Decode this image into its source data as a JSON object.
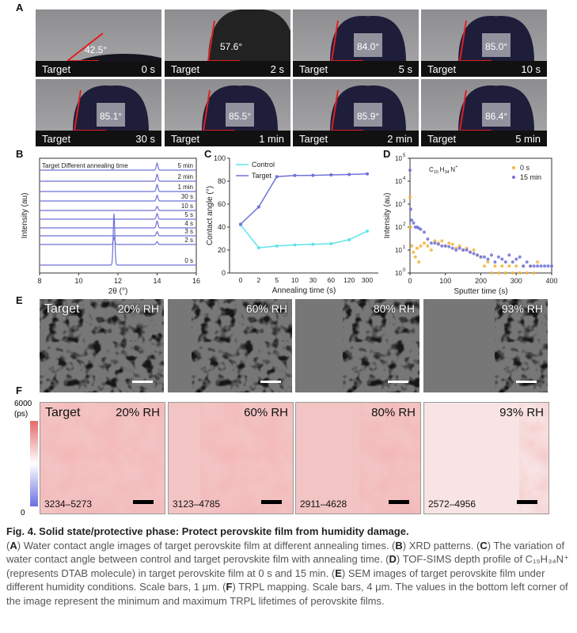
{
  "panel_labels": [
    "A",
    "B",
    "C",
    "D",
    "E",
    "F"
  ],
  "panel_a": {
    "sample": "Target",
    "images": [
      {
        "angle": "42.5°",
        "time": "0 s"
      },
      {
        "angle": "57.6°",
        "time": "2 s"
      },
      {
        "angle": "84.0°",
        "time": "5 s"
      },
      {
        "angle": "85.0°",
        "time": "10 s"
      },
      {
        "angle": "85.1°",
        "time": "30 s"
      },
      {
        "angle": "85.5°",
        "time": "1 min"
      },
      {
        "angle": "85.9°",
        "time": "2 min"
      },
      {
        "angle": "86.4°",
        "time": "5 min"
      }
    ]
  },
  "chart_data": [
    {
      "panel": "B",
      "type": "line",
      "title": "Target   Different annealing time",
      "xlabel": "2θ (°)",
      "ylabel": "Intensity (au)",
      "xlim": [
        8,
        16
      ],
      "xticks": [
        8,
        10,
        12,
        14,
        16
      ],
      "color": "#6f72d8",
      "series": [
        {
          "name": "0 s",
          "peaks": [
            {
              "x": 11.8,
              "h": 1.0
            }
          ]
        },
        {
          "name": "2 s",
          "peaks": [
            {
              "x": 11.8,
              "h": 0.25
            },
            {
              "x": 14.0,
              "h": 0.1
            }
          ]
        },
        {
          "name": "3 s",
          "peaks": [
            {
              "x": 14.0,
              "h": 0.15
            }
          ]
        },
        {
          "name": "4 s",
          "peaks": [
            {
              "x": 14.0,
              "h": 0.25
            }
          ]
        },
        {
          "name": "5 s",
          "peaks": [
            {
              "x": 14.0,
              "h": 0.2
            }
          ]
        },
        {
          "name": "10 s",
          "peaks": [
            {
              "x": 14.0,
              "h": 0.15
            }
          ]
        },
        {
          "name": "30 s",
          "peaks": [
            {
              "x": 14.0,
              "h": 0.2
            }
          ]
        },
        {
          "name": "1 min",
          "peaks": [
            {
              "x": 14.0,
              "h": 0.25
            }
          ]
        },
        {
          "name": "2 min",
          "peaks": [
            {
              "x": 14.0,
              "h": 0.25
            }
          ]
        },
        {
          "name": "5 min",
          "peaks": [
            {
              "x": 14.0,
              "h": 0.25
            }
          ]
        }
      ]
    },
    {
      "panel": "C",
      "type": "line",
      "xlabel": "Annealing time (s)",
      "ylabel": "Contact angle (°)",
      "ylim": [
        0,
        100
      ],
      "yticks": [
        0,
        20,
        40,
        60,
        80,
        100
      ],
      "categories": [
        "0",
        "2",
        "5",
        "10",
        "30",
        "60",
        "120",
        "300"
      ],
      "legend": "top-left",
      "series": [
        {
          "name": "Control",
          "color": "#5fe3ea",
          "values": [
            42,
            22,
            23.5,
            24.5,
            25,
            25.5,
            29,
            36.5
          ]
        },
        {
          "name": "Target",
          "color": "#6f72d8",
          "values": [
            42.5,
            57.6,
            84.0,
            85.0,
            85.1,
            85.5,
            85.9,
            86.4
          ]
        }
      ]
    },
    {
      "panel": "D",
      "type": "scatter",
      "annotation": "C15H34N+",
      "xlabel": "Sputter time (s)",
      "ylabel": "Intensity (au)",
      "xlim": [
        0,
        400
      ],
      "xticks": [
        0,
        100,
        200,
        300,
        400
      ],
      "yscale": "log",
      "ylim": [
        1,
        100000
      ],
      "yticks": [
        "10^0",
        "10^1",
        "10^2",
        "10^3",
        "10^4",
        "10^5"
      ],
      "legend": "top-right",
      "series": [
        {
          "name": "0 s",
          "color": "#f2b43c",
          "x": [
            0,
            2,
            5,
            10,
            15,
            20,
            25,
            30,
            40,
            50,
            60,
            70,
            80,
            90,
            100,
            110,
            120,
            130,
            140,
            150,
            160,
            170,
            180,
            190,
            200,
            210,
            220,
            230,
            240,
            250,
            260,
            270,
            280,
            290,
            300,
            310,
            320,
            330,
            340,
            350,
            360
          ],
          "y": [
            2000,
            100,
            15,
            8,
            5,
            12,
            3,
            15,
            20,
            15,
            10,
            25,
            20,
            25,
            15,
            20,
            18,
            12,
            15,
            10,
            12,
            8,
            10,
            6,
            5,
            2,
            3,
            1,
            2,
            1,
            2,
            1,
            2,
            1,
            2,
            1,
            2,
            1,
            2,
            1,
            3
          ]
        },
        {
          "name": "15 min",
          "color": "#6f72d8",
          "x": [
            0,
            2,
            5,
            10,
            15,
            20,
            25,
            30,
            40,
            50,
            60,
            70,
            80,
            90,
            100,
            110,
            120,
            130,
            140,
            150,
            160,
            170,
            180,
            190,
            200,
            210,
            220,
            230,
            240,
            250,
            260,
            270,
            280,
            290,
            300,
            310,
            320,
            330,
            340,
            350,
            360,
            370,
            380,
            390,
            400
          ],
          "y": [
            30000,
            600,
            200,
            150,
            100,
            100,
            90,
            80,
            60,
            30,
            20,
            20,
            18,
            15,
            15,
            14,
            12,
            10,
            12,
            10,
            10,
            8,
            7,
            6,
            5,
            5,
            4,
            6,
            3,
            5,
            4,
            3,
            6,
            3,
            4,
            5,
            2,
            3,
            2,
            2,
            2,
            2,
            2,
            2,
            2
          ]
        }
      ]
    }
  ],
  "panel_e": {
    "sample": "Target",
    "images": [
      {
        "rh": "20% RH"
      },
      {
        "rh": "60% RH"
      },
      {
        "rh": "80% RH"
      },
      {
        "rh": "93% RH"
      }
    ]
  },
  "panel_f": {
    "sample": "Target",
    "colorbar": {
      "max": "6000",
      "unit": "(ps)",
      "min": "0",
      "colors": [
        "#6b6fe0",
        "#ffffff",
        "#e46a6a"
      ]
    },
    "images": [
      {
        "rh": "20% RH",
        "range": "3234–5273"
      },
      {
        "rh": "60% RH",
        "range": "3123–4785"
      },
      {
        "rh": "80% RH",
        "range": "2911–4628"
      },
      {
        "rh": "93% RH",
        "range": "2572–4956"
      }
    ]
  },
  "caption": {
    "title": "Fig. 4. Solid state/protective phase: Protect perovskite film from humidity damage.",
    "body": [
      {
        "b": "A",
        "t": " Water contact angle images of target perovskite film at different annealing times. "
      },
      {
        "b": "B",
        "t": " XRD patterns. "
      },
      {
        "b": "C",
        "t": " The variation of water contact angle between control and target perovskite film with annealing time. "
      },
      {
        "b": "D",
        "t": " TOF-SIMS depth profile of C₁₅H₃₄N⁺ (represents DTAB molecule) in target perovskite film at 0 s and 15 min. "
      },
      {
        "b": "E",
        "t": " SEM images of target perovskite film under different humidity conditions. Scale bars, 1 μm. "
      },
      {
        "b": "F",
        "t": " TRPL mapping. Scale bars, 4 μm. The values in the bottom left corner of the image represent the minimum and maximum TRPL lifetimes of perovskite films."
      }
    ]
  }
}
